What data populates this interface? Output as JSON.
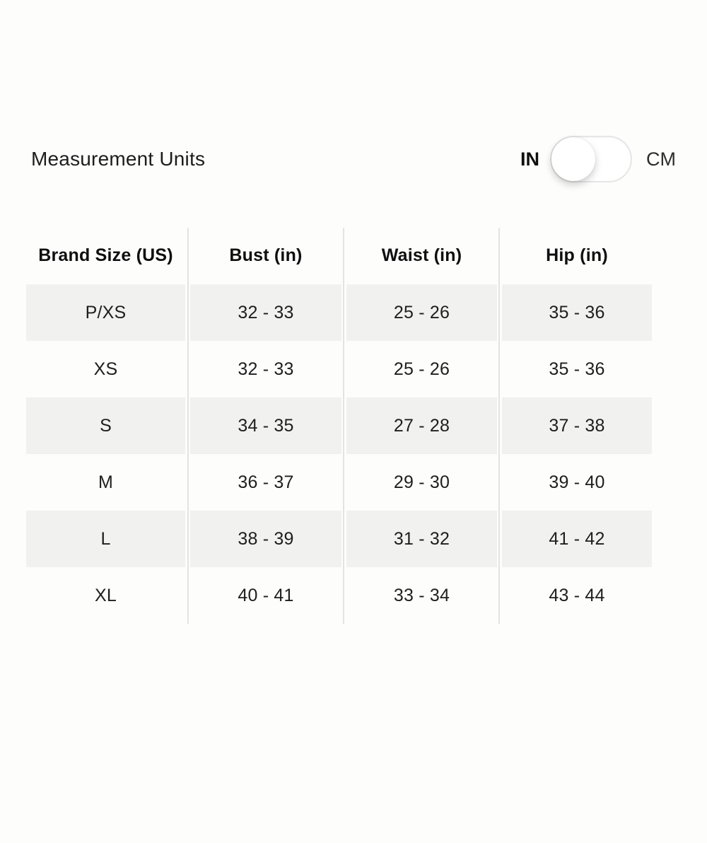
{
  "units_row": {
    "label": "Measurement Units",
    "toggle": {
      "left_label": "IN",
      "right_label": "CM",
      "selected": "IN",
      "knob_position": "left"
    }
  },
  "table": {
    "columns": [
      "Brand Size (US)",
      "Bust (in)",
      "Waist (in)",
      "Hip (in)"
    ],
    "rows": [
      {
        "size": "P/XS",
        "bust": "32 - 33",
        "waist": "25 - 26",
        "hip": "35 - 36",
        "shaded": true
      },
      {
        "size": "XS",
        "bust": "32 - 33",
        "waist": "25 - 26",
        "hip": "35 - 36",
        "shaded": false
      },
      {
        "size": "S",
        "bust": "34 - 35",
        "waist": "27 - 28",
        "hip": "37 - 38",
        "shaded": true
      },
      {
        "size": "M",
        "bust": "36 - 37",
        "waist": "29 - 30",
        "hip": "39 - 40",
        "shaded": false
      },
      {
        "size": "L",
        "bust": "38 - 39",
        "waist": "31 - 32",
        "hip": "41 - 42",
        "shaded": true
      },
      {
        "size": "XL",
        "bust": "40 - 41",
        "waist": "33 - 34",
        "hip": "43 - 44",
        "shaded": false
      }
    ]
  },
  "colors": {
    "bg": "#fdfdfc",
    "text": "#1b1b1b",
    "shaded": "#f1f1ef",
    "divider": "#e3e3e1",
    "toggle-border": "#e6e6e4"
  }
}
